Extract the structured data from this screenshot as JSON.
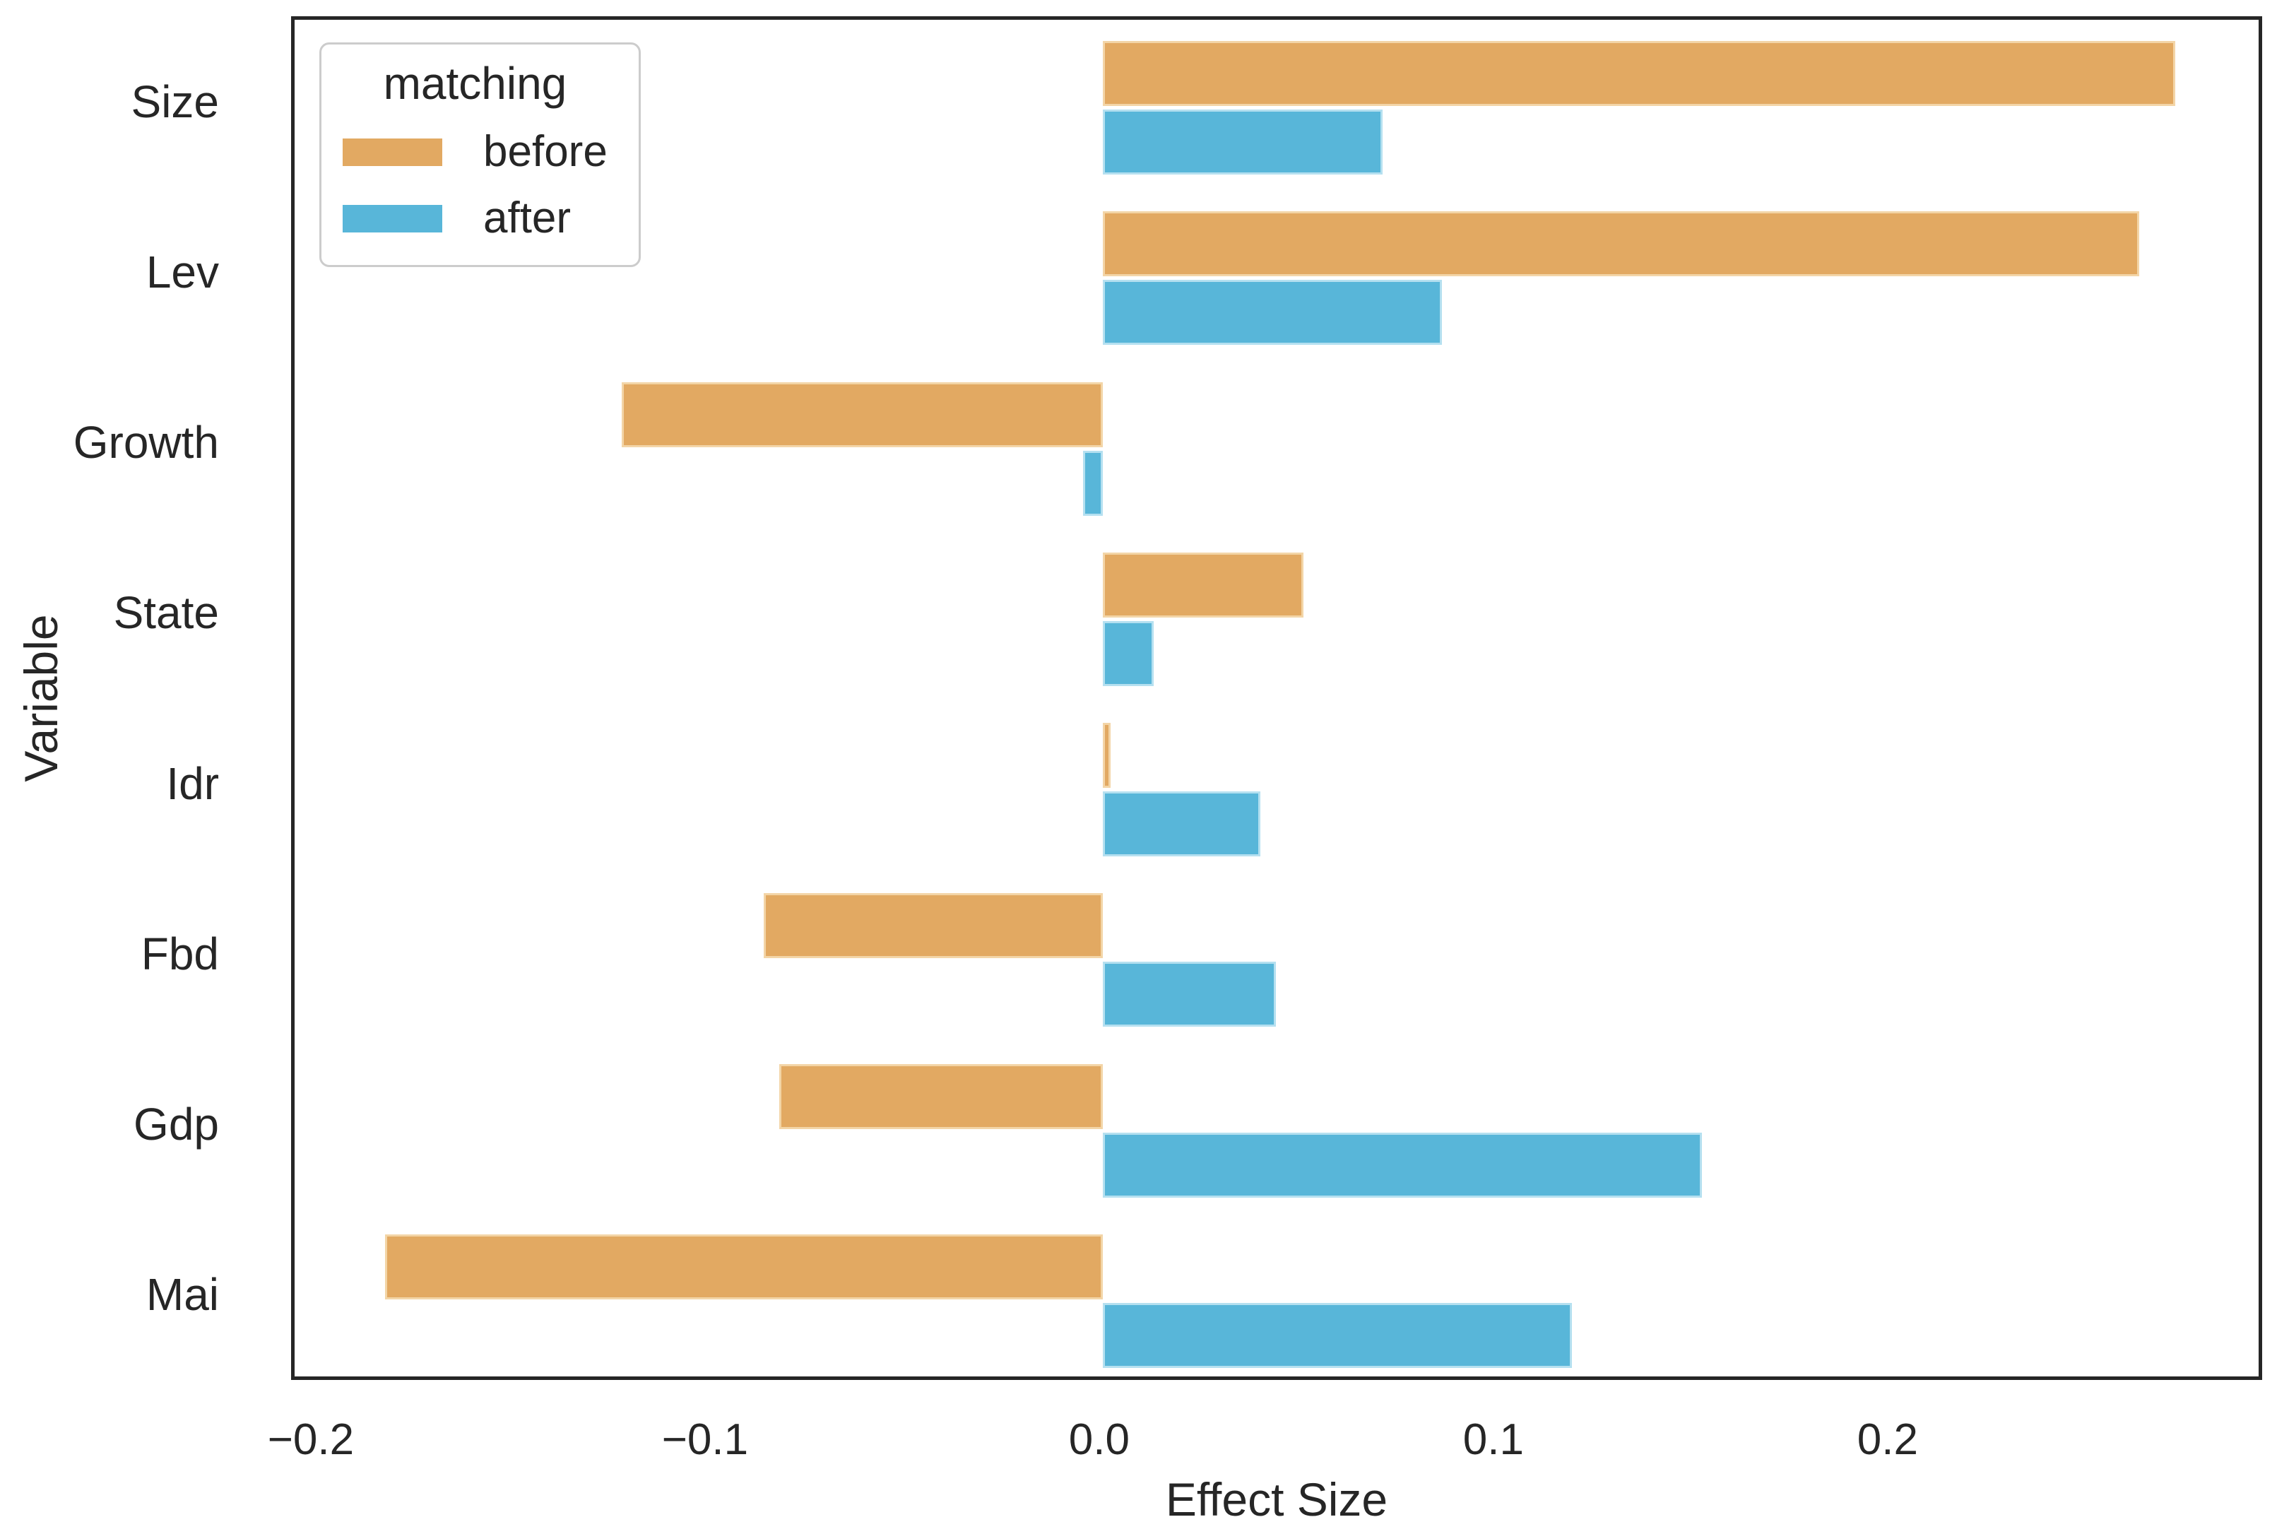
{
  "figure": {
    "background": "#ffffff",
    "text_color": "#262626",
    "spine_color": "#262626",
    "legend_border_color": "#cccccc"
  },
  "chart_data": {
    "type": "bar",
    "orientation": "horizontal",
    "title": "",
    "xlabel": "Effect Size",
    "ylabel": "Variable",
    "categories": [
      "Size",
      "Lev",
      "Growth",
      "State",
      "Idr",
      "Fbd",
      "Gdp",
      "Mai"
    ],
    "series": [
      {
        "name": "before",
        "color": "#E2A962",
        "edge_color": "#F3D5A7",
        "values": [
          0.272,
          0.263,
          -0.122,
          0.051,
          0.002,
          -0.086,
          -0.082,
          -0.182
        ]
      },
      {
        "name": "after",
        "color": "#58B6D9",
        "edge_color": "#B5E0F0",
        "values": [
          0.071,
          0.086,
          -0.005,
          0.013,
          0.04,
          0.044,
          0.152,
          0.119
        ]
      }
    ],
    "xlim": [
      -0.205,
      0.295
    ],
    "x_ticks": [
      -0.2,
      -0.1,
      0.0,
      0.1,
      0.2
    ],
    "x_tick_labels": [
      "−0.2",
      "−0.1",
      "0.0",
      "0.1",
      "0.2"
    ],
    "legend": {
      "title": "matching",
      "entries": [
        "before",
        "after"
      ],
      "position": "upper-left"
    },
    "grid": false
  }
}
